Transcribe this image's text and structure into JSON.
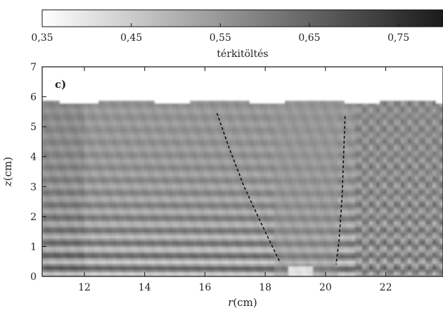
{
  "colorbar": {
    "label": "térkitöltés",
    "ticks": [
      "0,35",
      "0,45",
      "0,55",
      "0,65",
      "0,75"
    ],
    "tick_values": [
      0.35,
      0.45,
      0.55,
      0.65,
      0.75
    ],
    "range": [
      0.35,
      0.8
    ],
    "color_low": "#ffffff",
    "color_high": "#1a1a1a"
  },
  "chart_data": {
    "type": "heatmap",
    "title": "",
    "panel_label": "c)",
    "xlabel_symbol": "r",
    "xlabel_unit": "(cm)",
    "ylabel_symbol": "z",
    "ylabel_unit": "(cm)",
    "xlim": [
      10.6,
      23.9
    ],
    "ylim": [
      0,
      7
    ],
    "xticks": [
      12,
      14,
      16,
      18,
      20,
      22
    ],
    "xtick_labels": [
      "12",
      "14",
      "16",
      "18",
      "20",
      "22"
    ],
    "yticks": [
      0,
      1,
      2,
      3,
      4,
      5,
      6,
      7
    ],
    "ytick_labels": [
      "0",
      "1",
      "2",
      "3",
      "4",
      "5",
      "6",
      "7"
    ],
    "free_surface_z": 5.85,
    "dashed_lines": [
      {
        "points": [
          [
            16.4,
            5.45
          ],
          [
            16.8,
            4.3
          ],
          [
            17.3,
            3.0
          ],
          [
            17.9,
            1.7
          ],
          [
            18.5,
            0.45
          ]
        ]
      },
      {
        "points": [
          [
            20.65,
            5.35
          ],
          [
            20.6,
            4.0
          ],
          [
            20.55,
            2.6
          ],
          [
            20.45,
            1.2
          ],
          [
            20.35,
            0.4
          ]
        ]
      }
    ]
  }
}
